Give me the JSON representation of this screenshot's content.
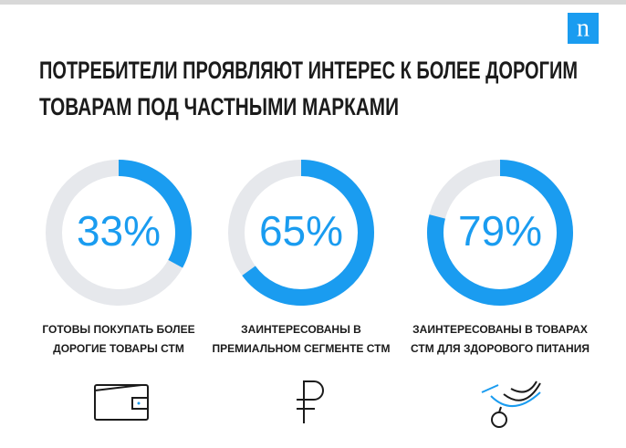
{
  "logo": "n",
  "title": [
    "ПОТРЕБИТЕЛИ ПРОЯВЛЯЮТ ИНТЕРЕС К БОЛЕЕ ДОРОГИМ",
    "ТОВАРАМ ПОД ЧАСТНЫМИ МАРКАМИ"
  ],
  "chart_data": [
    {
      "type": "donut",
      "values": [
        33
      ],
      "value_labels": [
        "33%"
      ],
      "color": "#1a9cf0",
      "caption": [
        "ГОТОВЫ ПОКУПАТЬ БОЛЕЕ",
        "ДОРОГИЕ ТОВАРЫ СТМ"
      ]
    },
    {
      "type": "donut",
      "values": [
        65
      ],
      "value_labels": [
        "65%"
      ],
      "color": "#1a9cf0",
      "caption": [
        "ЗАИНТЕРЕСОВАНЫ В",
        "ПРЕМИАЛЬНОМ СЕГМЕНТЕ СТМ"
      ]
    },
    {
      "type": "donut",
      "values": [
        79
      ],
      "value_labels": [
        "79%"
      ],
      "color": "#1a9cf0",
      "caption": [
        "ЗАИНТЕРЕСОВАНЫ В ТОВАРАХ",
        "СТМ ДЛЯ ЗДОРОВОГО ПИТАНИЯ"
      ]
    }
  ]
}
